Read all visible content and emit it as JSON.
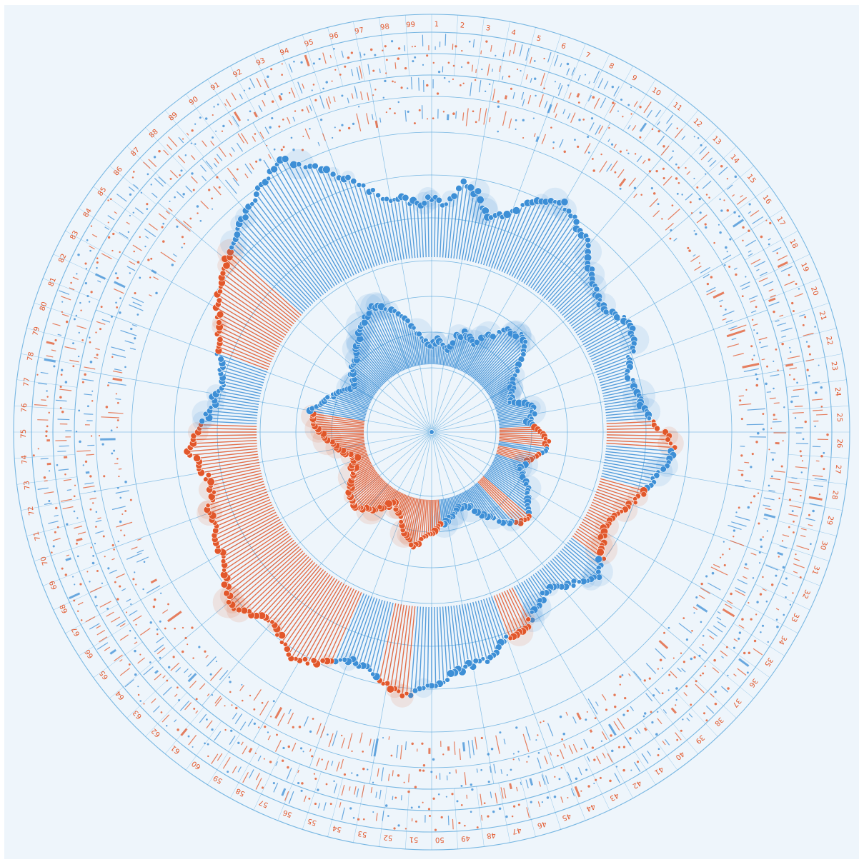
{
  "chart_data": {
    "type": "radial-lollipop",
    "title": "",
    "angular_axis": {
      "tick_labels": [
        "1",
        "2",
        "3",
        "4",
        "5",
        "6",
        "7",
        "8",
        "9",
        "10",
        "11",
        "12",
        "13",
        "14",
        "15",
        "16",
        "17",
        "18",
        "19",
        "20",
        "21",
        "22",
        "23",
        "24",
        "25",
        "26",
        "27",
        "28",
        "29",
        "30",
        "31",
        "32",
        "33",
        "34",
        "35",
        "36",
        "37",
        "38",
        "39",
        "40",
        "41",
        "42",
        "43",
        "44",
        "45",
        "46",
        "47",
        "48",
        "49",
        "50",
        "51",
        "52",
        "53",
        "54",
        "55",
        "56",
        "57",
        "58",
        "59",
        "60",
        "61",
        "62",
        "63",
        "64",
        "65",
        "66",
        "67",
        "68",
        "69",
        "70",
        "71",
        "72",
        "73",
        "74",
        "75",
        "76",
        "77",
        "78",
        "79",
        "80",
        "81",
        "82",
        "83",
        "84",
        "85",
        "86",
        "87",
        "88",
        "89",
        "90",
        "91",
        "92",
        "93",
        "94",
        "95",
        "96",
        "97",
        "98",
        "99"
      ],
      "direction": "clockwise",
      "start": "top"
    },
    "grid": true,
    "ring_count": 9,
    "spoke_count": 36,
    "colors": {
      "positive": "#e2572b",
      "negative": "#3d8fd6",
      "grid": "#5aa7dc",
      "background": "#eef5fb"
    },
    "series": [
      {
        "ring": "inner",
        "base": [
          0.3,
          0.4,
          0.3,
          0.3,
          0.5,
          0.6,
          0.6,
          0.5,
          0.7,
          0.8,
          1.0,
          1.0,
          1.1,
          1.0,
          0.8,
          0.6,
          0.4,
          0.4,
          0.3,
          0.3,
          0.5,
          0.6,
          0.6,
          0.5,
          0.6,
          0.7,
          0.8,
          0.8,
          0.7,
          0.6,
          0.5,
          0.5,
          0.6,
          0.7,
          0.8,
          0.9,
          1.0,
          1.0,
          0.9,
          0.8,
          0.6,
          0.5,
          0.3,
          0.2,
          0.2,
          0.3,
          0.3,
          0.4,
          0.4,
          0.5,
          0.6,
          0.7,
          0.8,
          0.7,
          0.6,
          0.4,
          0.3,
          0.2,
          0.3,
          0.4,
          0.5,
          0.6,
          0.7,
          0.6,
          0.6,
          0.5,
          0.4,
          0.3,
          0.3,
          0.2,
          0.3,
          0.4,
          0.5,
          0.6,
          0.7,
          0.8,
          0.9,
          0.9,
          0.8,
          0.7,
          0.6,
          0.5,
          0.4,
          0.4,
          0.5,
          0.6,
          0.6,
          0.7,
          0.8,
          0.9,
          1.0,
          1.1,
          1.2,
          1.1,
          1.0,
          0.9,
          0.7,
          0.5,
          0.4
        ],
        "sign": [
          "-",
          "-",
          "-",
          "-",
          "-",
          "-",
          "-",
          "-",
          "-",
          "-",
          "-",
          "-",
          "-",
          "-",
          "-",
          "-",
          "-",
          "-",
          "-",
          "-",
          "-",
          "-",
          "-",
          "-",
          "+",
          "+",
          "+",
          "-",
          "+",
          "+",
          "-",
          "-",
          "-",
          "-",
          "-",
          "-",
          "+",
          "+",
          "-",
          "-",
          "-",
          "-",
          "-",
          "-",
          "-",
          "-",
          "-",
          "-",
          "+",
          "+",
          "+",
          "+",
          "+",
          "+",
          "+",
          "+",
          "+",
          "+",
          "+",
          "+",
          "+",
          "+",
          "+",
          "+",
          "+",
          "+",
          "+",
          "+",
          "+",
          "+",
          "+",
          "+",
          "+",
          "+",
          "+",
          "+",
          "+",
          "-",
          "-",
          "-",
          "-",
          "-",
          "-",
          "-",
          "-",
          "-",
          "-",
          "-",
          "-",
          "-",
          "-",
          "-",
          "-",
          "-",
          "-",
          "-",
          "-",
          "-",
          "-"
        ]
      },
      {
        "ring": "outer",
        "base": [
          0.8,
          0.7,
          1.0,
          0.9,
          0.6,
          0.7,
          0.9,
          1.1,
          1.2,
          1.1,
          1.0,
          0.9,
          0.7,
          0.6,
          0.5,
          0.5,
          0.6,
          0.7,
          0.6,
          0.5,
          0.4,
          0.4,
          0.5,
          0.5,
          0.6,
          0.8,
          0.9,
          0.8,
          0.7,
          0.6,
          0.5,
          0.4,
          0.3,
          0.3,
          0.4,
          0.5,
          0.6,
          0.5,
          0.4,
          0.3,
          0.3,
          0.4,
          0.5,
          0.6,
          0.6,
          0.7,
          0.8,
          0.8,
          0.9,
          1.0,
          1.1,
          1.2,
          1.1,
          1.0,
          0.9,
          0.9,
          1.0,
          1.1,
          1.2,
          1.1,
          1.0,
          1.0,
          1.1,
          1.2,
          1.1,
          1.0,
          0.9,
          0.9,
          0.8,
          0.8,
          0.7,
          0.7,
          0.8,
          0.9,
          0.8,
          0.7,
          0.6,
          0.6,
          0.5,
          0.6,
          0.7,
          0.8,
          0.9,
          1.0,
          1.1,
          1.2,
          1.3,
          1.4,
          1.5,
          1.6,
          1.7,
          1.8,
          1.6,
          1.4,
          1.2,
          1.0,
          0.8,
          0.8,
          0.7
        ],
        "sign": [
          "-",
          "-",
          "-",
          "-",
          "-",
          "-",
          "-",
          "-",
          "-",
          "-",
          "-",
          "-",
          "-",
          "-",
          "-",
          "-",
          "-",
          "-",
          "-",
          "-",
          "-",
          "-",
          "-",
          "-",
          "+",
          "+",
          "-",
          "-",
          "-",
          "+",
          "+",
          "+",
          "+",
          "+",
          "+",
          "-",
          "-",
          "-",
          "-",
          "-",
          "-",
          "-",
          "+",
          "+",
          "-",
          "-",
          "-",
          "-",
          "-",
          "-",
          "-",
          "+",
          "+",
          "-",
          "-",
          "-",
          "+",
          "+",
          "+",
          "+",
          "+",
          "+",
          "+",
          "+",
          "+",
          "+",
          "+",
          "+",
          "+",
          "+",
          "+",
          "+",
          "+",
          "+",
          "+",
          "-",
          "-",
          "-",
          "-",
          "-",
          "+",
          "+",
          "+",
          "+",
          "+",
          "+",
          "-",
          "-",
          "-",
          "-",
          "-",
          "-",
          "-",
          "-",
          "-",
          "-",
          "-",
          "-",
          "-"
        ]
      }
    ]
  }
}
